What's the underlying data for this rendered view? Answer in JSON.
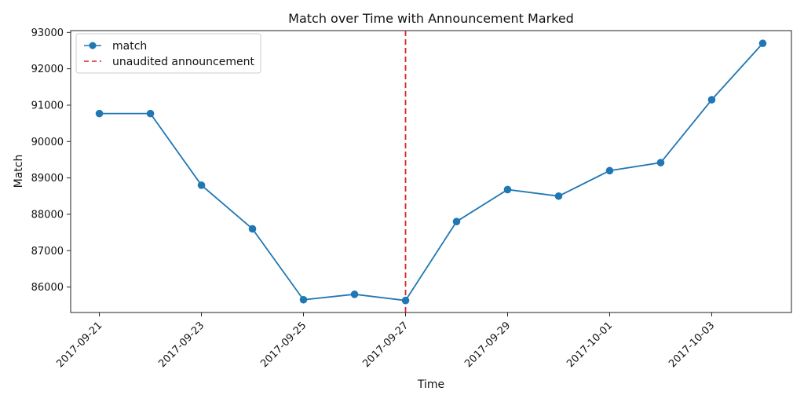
{
  "chart_data": {
    "type": "line",
    "title": "Match over Time with Announcement Marked",
    "xlabel": "Time",
    "ylabel": "Match",
    "x": [
      "2017-09-21",
      "2017-09-22",
      "2017-09-23",
      "2017-09-24",
      "2017-09-25",
      "2017-09-26",
      "2017-09-27",
      "2017-09-28",
      "2017-09-29",
      "2017-09-30",
      "2017-10-01",
      "2017-10-02",
      "2017-10-03",
      "2017-10-04"
    ],
    "x_ticks": [
      "2017-09-21",
      "2017-09-23",
      "2017-09-25",
      "2017-09-27",
      "2017-09-29",
      "2017-10-01",
      "2017-10-03"
    ],
    "x_range": [
      "2017-09-20T10:30:00",
      "2017-10-04T13:30:00"
    ],
    "ylim": [
      85300,
      93050
    ],
    "y_ticks": [
      86000,
      87000,
      88000,
      89000,
      90000,
      91000,
      92000,
      93000
    ],
    "series": [
      {
        "name": "match",
        "color": "#1f77b4",
        "marker": "circle",
        "values": [
          90770,
          90770,
          88800,
          87600,
          85650,
          85800,
          85630,
          87800,
          88680,
          88500,
          89200,
          89420,
          91150,
          92700
        ]
      }
    ],
    "announcement": {
      "name": "unaudited announcement",
      "x": "2017-09-27",
      "color": "#d62728",
      "line_style": "dashed"
    },
    "legend_placement": "top-left",
    "grid": false
  }
}
